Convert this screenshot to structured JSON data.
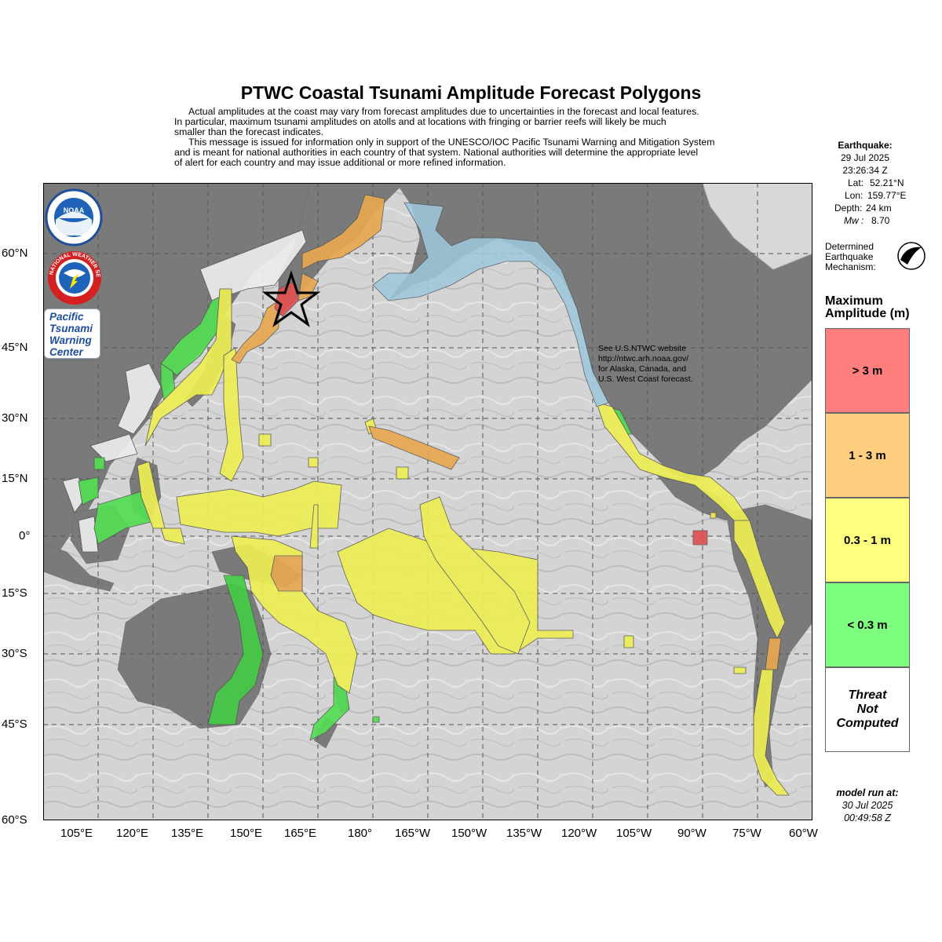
{
  "title": "PTWC Coastal Tsunami Amplitude Forecast Polygons",
  "disclaimer": [
    "Actual amplitudes at the coast may vary from forecast amplitudes due to uncertainties in the forecast and local features.",
    "In particular, maximum tsunami amplitudes on atolls and at locations with fringing or barrier reefs will likely be much",
    "smaller than the forecast indicates.",
    "This message is issued for information only in support of the UNESCO/IOC Pacific Tsunami Warning and Mitigation System",
    "and is meant for national authorities in each country of that system. National authorities will determine the appropriate level",
    "of alert for each country and may issue additional or more refined information."
  ],
  "earthquake": {
    "heading": "Earthquake:",
    "date": "29 Jul 2025",
    "time": "23:26:34 Z",
    "lat_label": "Lat:",
    "lat": "52.21°N",
    "lon_label": "Lon:",
    "lon": "159.77°E",
    "depth_label": "Depth:",
    "depth": "24 km",
    "mag_label": "Mw :",
    "mag": "8.70",
    "mechanism_label": [
      "Determined",
      "Earthquake",
      "Mechanism:"
    ]
  },
  "legend": {
    "title": [
      "Maximum",
      "Amplitude (m)"
    ],
    "items": [
      {
        "label": "> 3 m",
        "color": "#ff7f7f"
      },
      {
        "label": "1 - 3 m",
        "color": "#ffcf7f"
      },
      {
        "label": "0.3 - 1 m",
        "color": "#ffff7f"
      },
      {
        "label": "< 0.3 m",
        "color": "#7fff7f"
      },
      {
        "label": "Threat\nNot\nComputed",
        "color": "#ffffff"
      }
    ]
  },
  "model_run": {
    "heading": "model run at:",
    "date": "30 Jul 2025",
    "time": "00:49:58 Z"
  },
  "annotation": [
    "See U.S.NTWC website",
    "http://ntwc.arh.noaa.gov/",
    "for Alaska, Canada, and",
    "U.S. West Coast forecast."
  ],
  "axes": {
    "lon_labels": [
      "105°E",
      "120°E",
      "135°E",
      "150°E",
      "165°E",
      "180°",
      "165°W",
      "150°W",
      "135°W",
      "120°W",
      "105°W",
      "90°W",
      "75°W",
      "60°W"
    ],
    "lat_labels": [
      "60°N",
      "45°N",
      "30°N",
      "15°N",
      "0°",
      "15°S",
      "30°S",
      "45°S",
      "60°S"
    ]
  },
  "logos": {
    "noaa": "NOAA",
    "nws": "NATIONAL WEATHER SERVICE",
    "ptwc": [
      "Pacific",
      "Tsunami",
      "Warning",
      "Center"
    ]
  },
  "epicenter": {
    "lat": 52.21,
    "lon": 159.77,
    "marker": "star-icon"
  }
}
